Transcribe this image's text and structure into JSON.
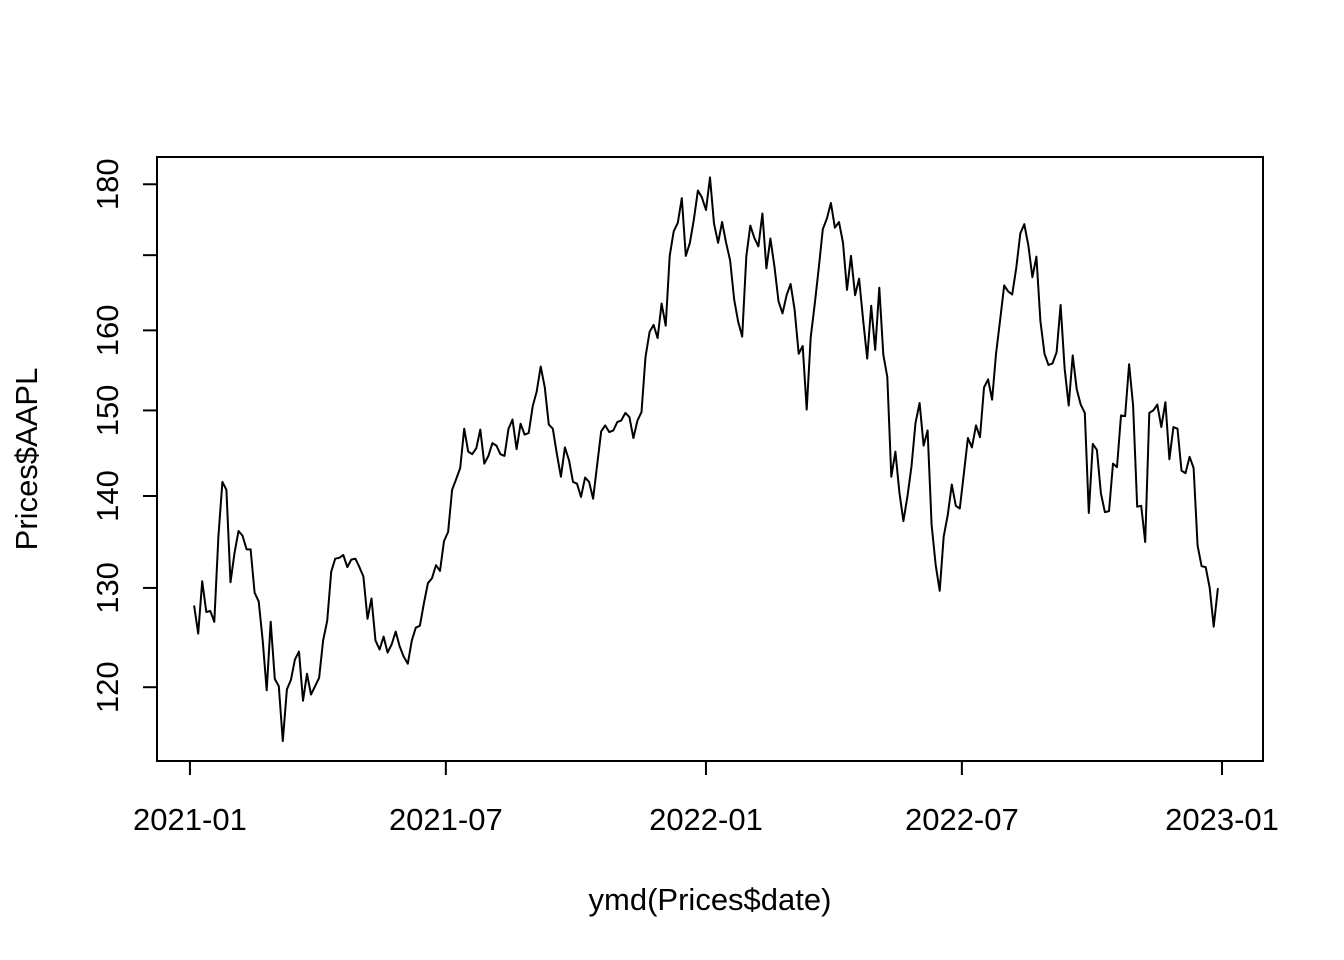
{
  "figure": {
    "background_color": "#ffffff",
    "foreground_color": "#000000"
  },
  "chart_data": {
    "type": "line",
    "title": "",
    "xlabel": "ymd(Prices$date)",
    "ylabel": "Prices$AAPL",
    "x_scale": "date",
    "y_scale": "log",
    "grid": "off",
    "legend": "none",
    "line_color": "#000000",
    "line_width": 2,
    "x_origin_date": "2021-01-01",
    "x_range_days": [
      -23.3,
      759.0
    ],
    "y_range": [
      113.07,
      184.0
    ],
    "x_ticks": [
      {
        "day": 0,
        "label": "2021-01"
      },
      {
        "day": 181,
        "label": "2021-07"
      },
      {
        "day": 365,
        "label": "2022-01"
      },
      {
        "day": 546,
        "label": "2022-07"
      },
      {
        "day": 730,
        "label": "2023-01"
      }
    ],
    "y_ticks": [
      {
        "value": 120,
        "label": "120"
      },
      {
        "value": 130,
        "label": "130"
      },
      {
        "value": 140,
        "label": "140"
      },
      {
        "value": 150,
        "label": "150"
      },
      {
        "value": 160,
        "label": "160"
      },
      {
        "value": 170,
        "label": ""
      },
      {
        "value": 180,
        "label": "180"
      }
    ],
    "series": [
      {
        "name": "Prices$AAPL",
        "start_day": 3,
        "end_day": 727,
        "values": [
          128.1,
          125.3,
          130.7,
          127.5,
          127.6,
          126.5,
          135.5,
          141.6,
          140.7,
          130.6,
          133.7,
          136.1,
          135.6,
          134.1,
          134.1,
          129.5,
          128.6,
          124.6,
          119.7,
          126.5,
          120.8,
          120.1,
          114.9,
          119.8,
          120.7,
          122.7,
          123.5,
          118.7,
          121.3,
          119.3,
          120.1,
          120.9,
          124.6,
          126.6,
          131.7,
          133.1,
          133.2,
          133.5,
          132.2,
          133.0,
          133.1,
          132.2,
          131.2,
          126.8,
          128.9,
          124.6,
          123.7,
          125.0,
          123.4,
          124.2,
          125.5,
          124.0,
          123.0,
          122.3,
          124.6,
          125.9,
          126.1,
          128.4,
          130.5,
          131.0,
          132.4,
          131.8,
          135.0,
          136.0,
          140.7,
          141.9,
          143.2,
          147.8,
          145.1,
          144.8,
          145.5,
          147.7,
          143.7,
          144.6,
          146.1,
          145.8,
          144.8,
          144.6,
          147.8,
          148.9,
          145.4,
          148.4,
          147.1,
          147.3,
          150.5,
          152.3,
          155.4,
          152.8,
          148.3,
          147.8,
          144.8,
          142.2,
          145.6,
          144.1,
          141.6,
          141.4,
          139.9,
          142.1,
          141.6,
          139.7,
          143.6,
          147.5,
          148.2,
          147.4,
          147.6,
          148.6,
          148.8,
          149.7,
          149.2,
          146.7,
          148.8,
          149.8,
          156.6,
          159.8,
          160.7,
          159.0,
          163.5,
          160.6,
          169.9,
          173.3,
          174.5,
          178.0,
          169.9,
          171.7,
          175.0,
          179.1,
          178.1,
          176.3,
          181.0,
          174.4,
          171.7,
          174.6,
          171.7,
          169.3,
          164.0,
          161.1,
          159.2,
          169.8,
          174.1,
          172.4,
          171.2,
          175.8,
          168.2,
          172.3,
          168.4,
          163.8,
          162.2,
          164.6,
          166.1,
          162.7,
          157.0,
          158.0,
          150.1,
          159.1,
          163.5,
          168.3,
          173.6,
          175.1,
          177.3,
          173.8,
          174.6,
          171.7,
          165.3,
          169.9,
          164.6,
          166.8,
          161.4,
          156.4,
          163.2,
          157.5,
          165.6,
          156.9,
          154.1,
          142.2,
          145.1,
          140.4,
          137.2,
          140.0,
          143.4,
          148.5,
          150.9,
          145.8,
          147.6,
          136.8,
          132.4,
          129.7,
          135.5,
          137.9,
          141.3,
          138.9,
          138.6,
          142.6,
          146.7,
          145.6,
          148.2,
          146.8,
          152.8,
          153.8,
          151.3,
          157.1,
          161.3,
          165.9,
          165.1,
          164.7,
          168.3,
          173.0,
          174.3,
          171.3,
          167.0,
          169.8,
          161.2,
          157.0,
          155.6,
          155.8,
          157.2,
          163.3,
          155.2,
          150.6,
          156.8,
          152.6,
          150.7,
          149.7,
          138.1,
          146.0,
          145.3,
          140.3,
          138.2,
          138.3,
          143.7,
          143.3,
          149.4,
          149.3,
          155.7,
          150.6,
          138.8,
          138.9,
          134.9,
          149.7,
          150.0,
          150.7,
          148.0,
          151.0,
          144.2,
          148.0,
          147.8,
          142.9,
          142.6,
          144.5,
          143.2,
          134.5,
          132.3,
          132.2,
          130.0,
          126.0,
          129.9
        ]
      }
    ]
  }
}
